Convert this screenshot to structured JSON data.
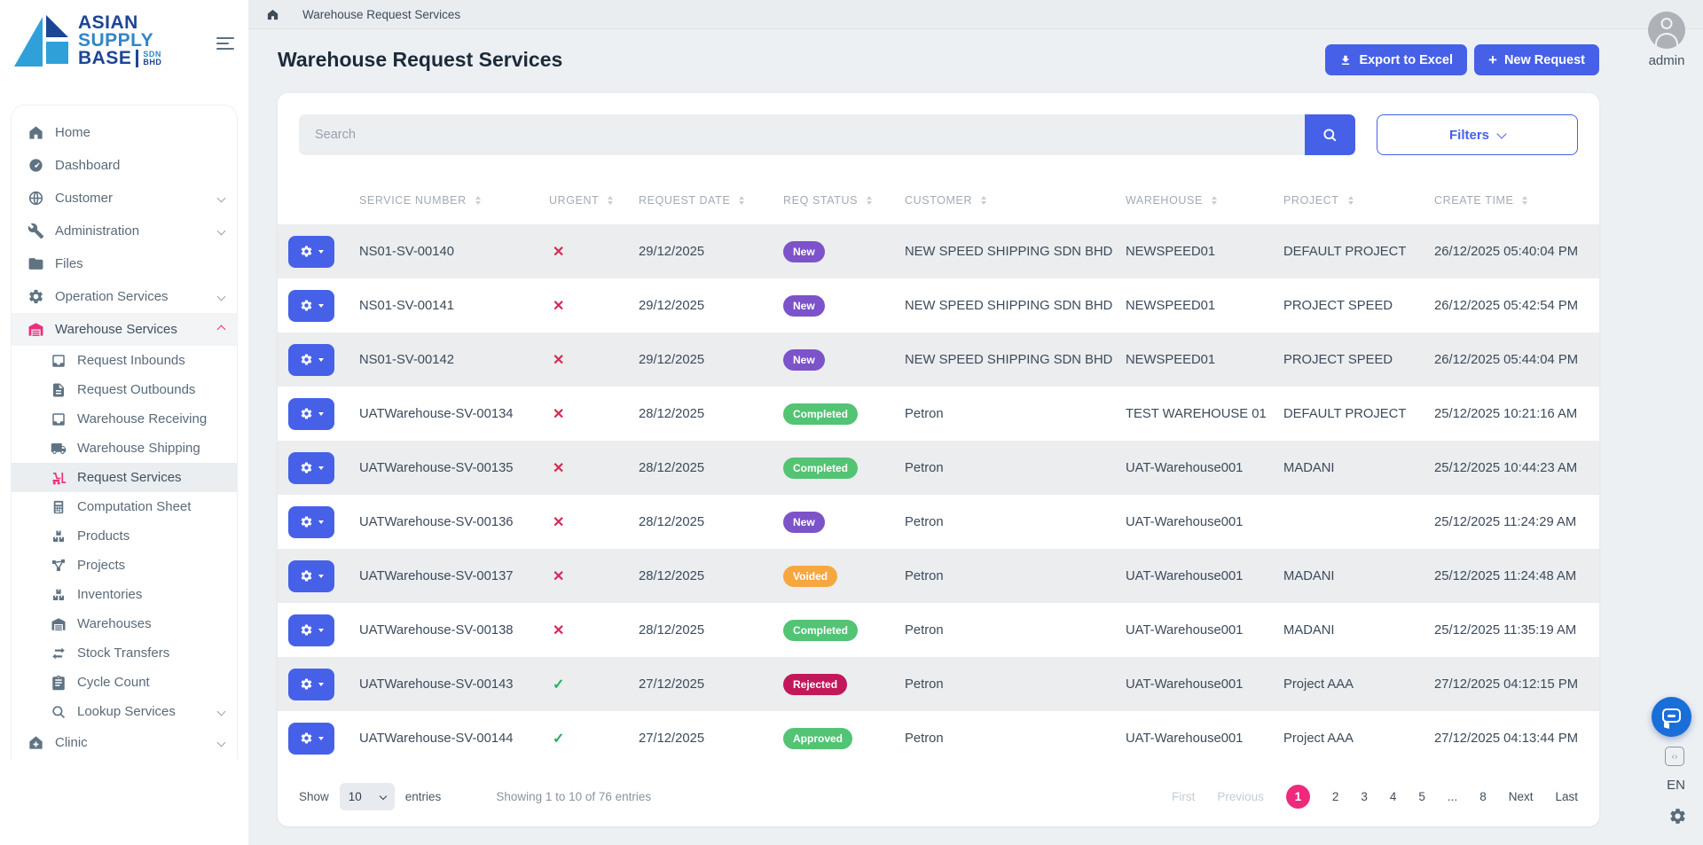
{
  "brand": {
    "name_lines": [
      "ASIAN",
      "SUPPLY",
      "BASE"
    ],
    "suffix": [
      "SDN",
      "BHD"
    ]
  },
  "topbar": {
    "breadcrumb": "Warehouse Request Services"
  },
  "user": {
    "name": "admin"
  },
  "page": {
    "title": "Warehouse Request Services",
    "buttons": {
      "export": "Export to Excel",
      "new": "New Request"
    }
  },
  "search": {
    "placeholder": "Search"
  },
  "filters_label": "Filters",
  "sidebar": {
    "items": [
      {
        "label": "Home",
        "icon": "home",
        "type": "top"
      },
      {
        "label": "Dashboard",
        "icon": "gauge",
        "type": "top"
      },
      {
        "label": "Customer",
        "icon": "globe",
        "type": "top",
        "chevron": "down"
      },
      {
        "label": "Administration",
        "icon": "wrench",
        "type": "top",
        "chevron": "down"
      },
      {
        "label": "Files",
        "icon": "folder",
        "type": "top"
      },
      {
        "label": "Operation Services",
        "icon": "gears",
        "type": "top",
        "chevron": "down"
      },
      {
        "label": "Warehouse Services",
        "icon": "warehouse",
        "type": "top",
        "chevron": "up",
        "highlight": true,
        "accent": true
      },
      {
        "label": "Request Inbounds",
        "icon": "inbox",
        "type": "sub"
      },
      {
        "label": "Request Outbounds",
        "icon": "file",
        "type": "sub"
      },
      {
        "label": "Warehouse Receiving",
        "icon": "inbox",
        "type": "sub"
      },
      {
        "label": "Warehouse Shipping",
        "icon": "truck",
        "type": "sub"
      },
      {
        "label": "Request Services",
        "icon": "forklift",
        "type": "sub",
        "active": true,
        "accent": true
      },
      {
        "label": "Computation Sheet",
        "icon": "calculator",
        "type": "sub"
      },
      {
        "label": "Products",
        "icon": "boxes",
        "type": "sub"
      },
      {
        "label": "Projects",
        "icon": "nodes",
        "type": "sub"
      },
      {
        "label": "Inventories",
        "icon": "boxes",
        "type": "sub"
      },
      {
        "label": "Warehouses",
        "icon": "warehouse",
        "type": "sub"
      },
      {
        "label": "Stock Transfers",
        "icon": "transfer",
        "type": "sub"
      },
      {
        "label": "Cycle Count",
        "icon": "clipboard",
        "type": "sub"
      },
      {
        "label": "Lookup Services",
        "icon": "magnifier",
        "type": "sub",
        "chevron": "down"
      },
      {
        "label": "Clinic",
        "icon": "clinic",
        "type": "top",
        "chevron": "down"
      }
    ]
  },
  "table": {
    "columns": [
      {
        "label": "SERVICE NUMBER",
        "key": "service_number"
      },
      {
        "label": "URGENT",
        "key": "urgent"
      },
      {
        "label": "REQUEST DATE",
        "key": "request_date"
      },
      {
        "label": "REQ STATUS",
        "key": "status"
      },
      {
        "label": "CUSTOMER",
        "key": "customer"
      },
      {
        "label": "WAREHOUSE",
        "key": "warehouse"
      },
      {
        "label": "PROJECT",
        "key": "project"
      },
      {
        "label": "CREATE TIME",
        "key": "create_time"
      }
    ],
    "rows": [
      {
        "service_number": "NS01-SV-00140",
        "urgent": "no",
        "request_date": "29/12/2025",
        "status": "New",
        "customer": "NEW SPEED SHIPPING SDN BHD",
        "warehouse": "NEWSPEED01",
        "project": "DEFAULT PROJECT",
        "create_time": "26/12/2025 05:40:04 PM"
      },
      {
        "service_number": "NS01-SV-00141",
        "urgent": "no",
        "request_date": "29/12/2025",
        "status": "New",
        "customer": "NEW SPEED SHIPPING SDN BHD",
        "warehouse": "NEWSPEED01",
        "project": "PROJECT SPEED",
        "create_time": "26/12/2025 05:42:54 PM"
      },
      {
        "service_number": "NS01-SV-00142",
        "urgent": "no",
        "request_date": "29/12/2025",
        "status": "New",
        "customer": "NEW SPEED SHIPPING SDN BHD",
        "warehouse": "NEWSPEED01",
        "project": "PROJECT SPEED",
        "create_time": "26/12/2025 05:44:04 PM"
      },
      {
        "service_number": "UATWarehouse-SV-00134",
        "urgent": "no",
        "request_date": "28/12/2025",
        "status": "Completed",
        "customer": "Petron",
        "warehouse": "TEST WAREHOUSE 01",
        "project": "DEFAULT PROJECT",
        "create_time": "25/12/2025 10:21:16 AM"
      },
      {
        "service_number": "UATWarehouse-SV-00135",
        "urgent": "no",
        "request_date": "28/12/2025",
        "status": "Completed",
        "customer": "Petron",
        "warehouse": "UAT-Warehouse001",
        "project": "MADANI",
        "create_time": "25/12/2025 10:44:23 AM"
      },
      {
        "service_number": "UATWarehouse-SV-00136",
        "urgent": "no",
        "request_date": "28/12/2025",
        "status": "New",
        "customer": "Petron",
        "warehouse": "UAT-Warehouse001",
        "project": "",
        "create_time": "25/12/2025 11:24:29 AM"
      },
      {
        "service_number": "UATWarehouse-SV-00137",
        "urgent": "no",
        "request_date": "28/12/2025",
        "status": "Voided",
        "customer": "Petron",
        "warehouse": "UAT-Warehouse001",
        "project": "MADANI",
        "create_time": "25/12/2025 11:24:48 AM"
      },
      {
        "service_number": "UATWarehouse-SV-00138",
        "urgent": "no",
        "request_date": "28/12/2025",
        "status": "Completed",
        "customer": "Petron",
        "warehouse": "UAT-Warehouse001",
        "project": "MADANI",
        "create_time": "25/12/2025 11:35:19 AM"
      },
      {
        "service_number": "UATWarehouse-SV-00143",
        "urgent": "yes",
        "request_date": "27/12/2025",
        "status": "Rejected",
        "customer": "Petron",
        "warehouse": "UAT-Warehouse001",
        "project": "Project AAA",
        "create_time": "27/12/2025 04:12:15 PM"
      },
      {
        "service_number": "UATWarehouse-SV-00144",
        "urgent": "yes",
        "request_date": "27/12/2025",
        "status": "Approved",
        "customer": "Petron",
        "warehouse": "UAT-Warehouse001",
        "project": "Project AAA",
        "create_time": "27/12/2025 04:13:44 PM"
      }
    ]
  },
  "footer": {
    "show_label": "Show",
    "page_size": "10",
    "entries_label": "entries",
    "summary": "Showing 1 to 10 of 76 entries"
  },
  "pagination": {
    "first": "First",
    "previous": "Previous",
    "pages": [
      "1",
      "2",
      "3",
      "4",
      "5",
      "...",
      "8"
    ],
    "active": "1",
    "next": "Next",
    "last": "Last"
  },
  "widgets": {
    "language": "EN"
  },
  "colors": {
    "primary": "#4661E8",
    "accent_pink": "#EC2D7C",
    "pager_active": "#ED2A7B",
    "status": {
      "New": "#7C53C9",
      "Completed": "#53C374",
      "Approved": "#53C374",
      "Voided": "#F6A83F",
      "Rejected": "#C2185B"
    },
    "urgent_no": "#D22C55",
    "urgent_yes": "#27AE60"
  }
}
